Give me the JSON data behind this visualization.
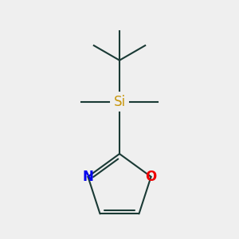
{
  "bg_color": "#efefef",
  "bond_color": "#1a3a35",
  "si_color": "#c8960c",
  "n_color": "#0000ee",
  "o_color": "#ee0000",
  "line_width": 1.5,
  "fig_size": [
    3.0,
    3.0
  ],
  "dpi": 100,
  "si_label": "Si",
  "n_label": "N",
  "o_label": "O",
  "si_fontsize": 12,
  "heteroatom_fontsize": 12
}
